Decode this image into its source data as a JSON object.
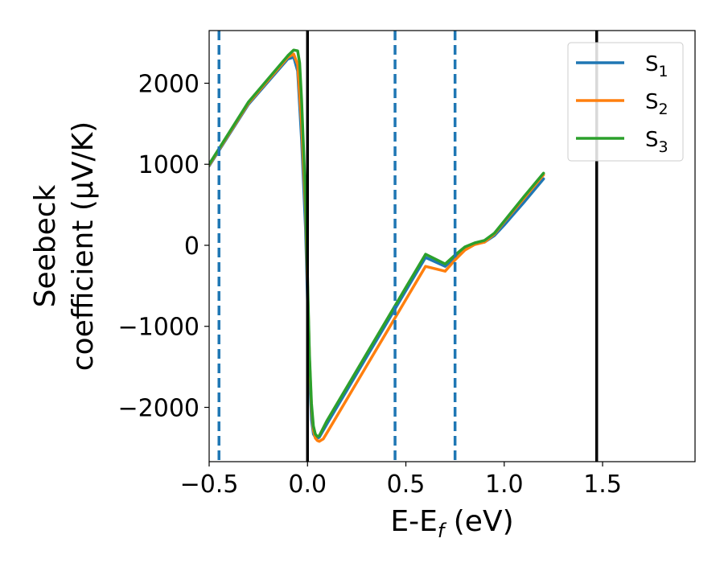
{
  "chart_data": {
    "type": "line",
    "xlabel": {
      "main": "E-E",
      "sub": "f",
      "unit": " (eV)"
    },
    "ylabel": {
      "line1": "Seebeck",
      "line2": "coefficient  (μV/K)"
    },
    "xlim": [
      -0.5,
      1.97
    ],
    "ylim": [
      -2670,
      2650
    ],
    "xticks": [
      {
        "value": -0.5,
        "label": "−0.5"
      },
      {
        "value": 0.0,
        "label": "0.0"
      },
      {
        "value": 0.5,
        "label": "0.5"
      },
      {
        "value": 1.0,
        "label": "1.0"
      },
      {
        "value": 1.5,
        "label": "1.5"
      }
    ],
    "yticks": [
      {
        "value": 2000,
        "label": "2000"
      },
      {
        "value": 1000,
        "label": "1000"
      },
      {
        "value": 0,
        "label": "0"
      },
      {
        "value": -1000,
        "label": "−1000"
      },
      {
        "value": -2000,
        "label": "−2000"
      }
    ],
    "vlines_solid": [
      0.0,
      1.47
    ],
    "vlines_dashed": [
      -0.45,
      0.445,
      0.75
    ],
    "solid_line_color": "#000000",
    "dashed_line_color": "#1f77b4",
    "grid": false,
    "legend_position": "top-right",
    "series": [
      {
        "name": "S",
        "sub": "1",
        "color": "#1f77b4",
        "x": [
          -0.5,
          -0.3,
          -0.1,
          -0.07,
          -0.05,
          -0.03,
          -0.01,
          0.0,
          0.01,
          0.02,
          0.03,
          0.04,
          0.05,
          0.06,
          0.1,
          0.2,
          0.3,
          0.4,
          0.5,
          0.6,
          0.7,
          0.75,
          0.8,
          0.85,
          0.9,
          0.95,
          1.0,
          1.1,
          1.2
        ],
        "y": [
          980,
          1740,
          2300,
          2320,
          2150,
          1300,
          200,
          -700,
          -1600,
          -2150,
          -2330,
          -2370,
          -2380,
          -2370,
          -2200,
          -1790,
          -1380,
          -970,
          -560,
          -150,
          -260,
          -150,
          -40,
          20,
          40,
          120,
          250,
          530,
          820
        ]
      },
      {
        "name": "S",
        "sub": "2",
        "color": "#ff7f0e",
        "x": [
          -0.5,
          -0.3,
          -0.1,
          -0.07,
          -0.05,
          -0.03,
          -0.01,
          0.0,
          0.01,
          0.02,
          0.03,
          0.04,
          0.05,
          0.06,
          0.08,
          0.1,
          0.2,
          0.3,
          0.4,
          0.5,
          0.6,
          0.7,
          0.75,
          0.8,
          0.85,
          0.9,
          0.95,
          1.0,
          1.1,
          1.2
        ],
        "y": [
          990,
          1755,
          2320,
          2360,
          2230,
          1500,
          450,
          -500,
          -1400,
          -2000,
          -2280,
          -2380,
          -2410,
          -2420,
          -2390,
          -2310,
          -1900,
          -1490,
          -1080,
          -670,
          -260,
          -320,
          -180,
          -60,
          10,
          40,
          140,
          290,
          580,
          870
        ]
      },
      {
        "name": "S",
        "sub": "3",
        "color": "#2ca02c",
        "x": [
          -0.5,
          -0.3,
          -0.1,
          -0.07,
          -0.05,
          -0.04,
          -0.03,
          -0.01,
          0.0,
          0.01,
          0.02,
          0.03,
          0.04,
          0.05,
          0.06,
          0.1,
          0.2,
          0.3,
          0.4,
          0.5,
          0.6,
          0.7,
          0.75,
          0.8,
          0.85,
          0.9,
          0.95,
          1.0,
          1.1,
          1.2
        ],
        "y": [
          1000,
          1770,
          2340,
          2410,
          2400,
          2250,
          1800,
          600,
          -400,
          -1350,
          -1950,
          -2230,
          -2330,
          -2360,
          -2350,
          -2160,
          -1750,
          -1340,
          -930,
          -520,
          -110,
          -230,
          -120,
          -20,
          30,
          60,
          150,
          300,
          600,
          890
        ]
      }
    ]
  }
}
